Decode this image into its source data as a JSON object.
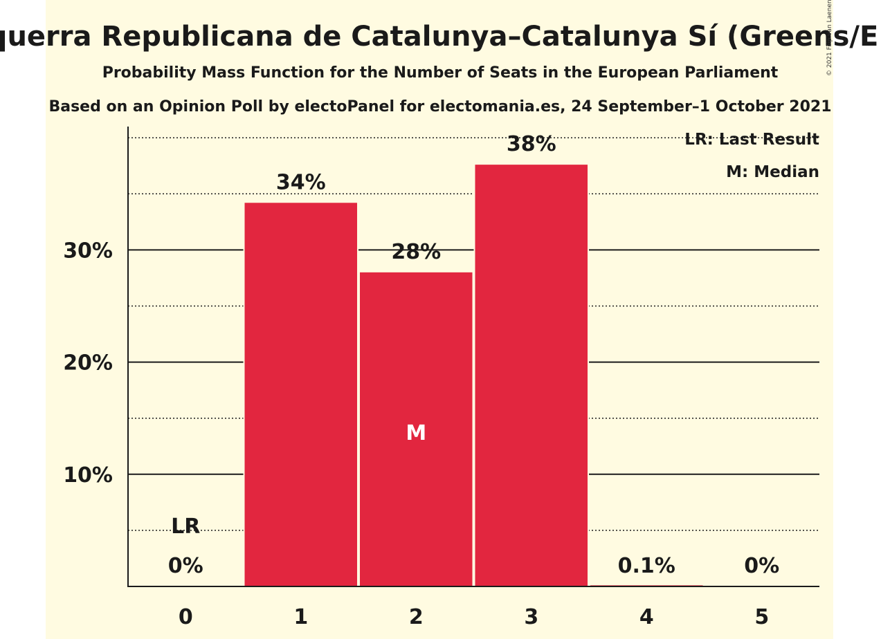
{
  "chart_data": {
    "type": "bar",
    "title": "Esquerra Republicana de Catalunya–Catalunya Sí (Greens/EFA)",
    "subtitle": "Probability Mass Function for the Number of Seats in the European Parliament",
    "subtitle2": "Based on an Opinion Poll by electoPanel for electomania.es, 24 September–1 October 2021",
    "copyright": "© 2021 Filip van Laenen",
    "categories": [
      "0",
      "1",
      "2",
      "3",
      "4",
      "5"
    ],
    "values": [
      0,
      34.2,
      28.0,
      37.6,
      0.1,
      0
    ],
    "value_labels": [
      "0%",
      "34%",
      "28%",
      "38%",
      "0.1%",
      "0%"
    ],
    "yticks": [
      10,
      20,
      30
    ],
    "ytick_labels": [
      "10%",
      "20%",
      "30%"
    ],
    "ylim": [
      0,
      41
    ],
    "last_result_index": 0,
    "last_result_marker": "LR",
    "median_index": 2,
    "median_marker": "M",
    "legend": [
      "LR: Last Result",
      "M: Median"
    ],
    "legend_position": "top-right",
    "bar_color": "#e2263f",
    "background_color": "#fffbe1"
  }
}
